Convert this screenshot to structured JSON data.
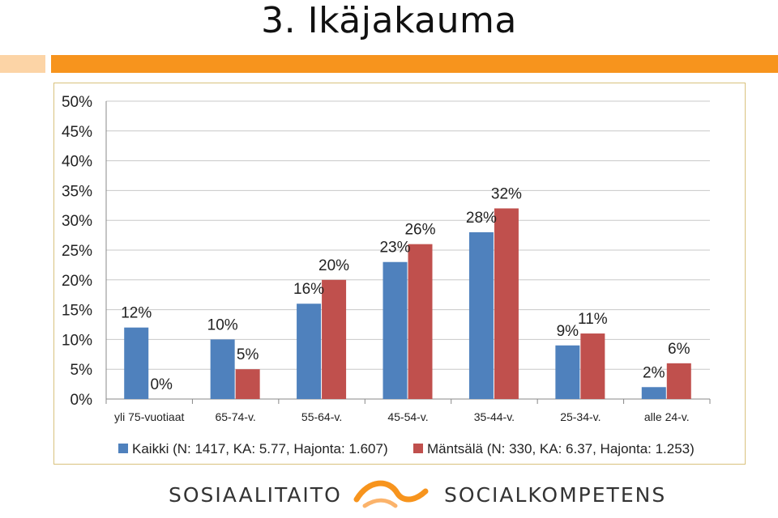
{
  "title": "3. Ikäjakauma",
  "colors": {
    "series1": "#4f81bd",
    "series2": "#c0504d",
    "accent": "#f7941d"
  },
  "chart_data": {
    "type": "bar",
    "categories": [
      "yli 75-vuotiaat",
      "65-74-v.",
      "55-64-v.",
      "45-54-v.",
      "35-44-v.",
      "25-34-v.",
      "alle 24-v."
    ],
    "series": [
      {
        "name": "Kaikki (N: 1417, KA: 5.77, Hajonta: 1.607)",
        "values": [
          12,
          10,
          16,
          23,
          28,
          9,
          2
        ],
        "labels": [
          "12%",
          "10%",
          "16%",
          "23%",
          "28%",
          "9%",
          "2%"
        ]
      },
      {
        "name": "Mäntsälä (N: 330, KA: 6.37, Hajonta: 1.253)",
        "values": [
          0,
          5,
          20,
          26,
          32,
          11,
          6
        ],
        "labels": [
          "0%",
          "5%",
          "20%",
          "26%",
          "32%",
          "11%",
          "6%"
        ]
      }
    ],
    "ylim": [
      0,
      50
    ],
    "yticks": [
      "0%",
      "5%",
      "10%",
      "15%",
      "20%",
      "25%",
      "30%",
      "35%",
      "40%",
      "45%",
      "50%"
    ],
    "grid": true,
    "legend": "bottom"
  },
  "footer": {
    "logo_left": "SOSIAALITAITO",
    "logo_right": "SOCIALKOMPETENS"
  }
}
